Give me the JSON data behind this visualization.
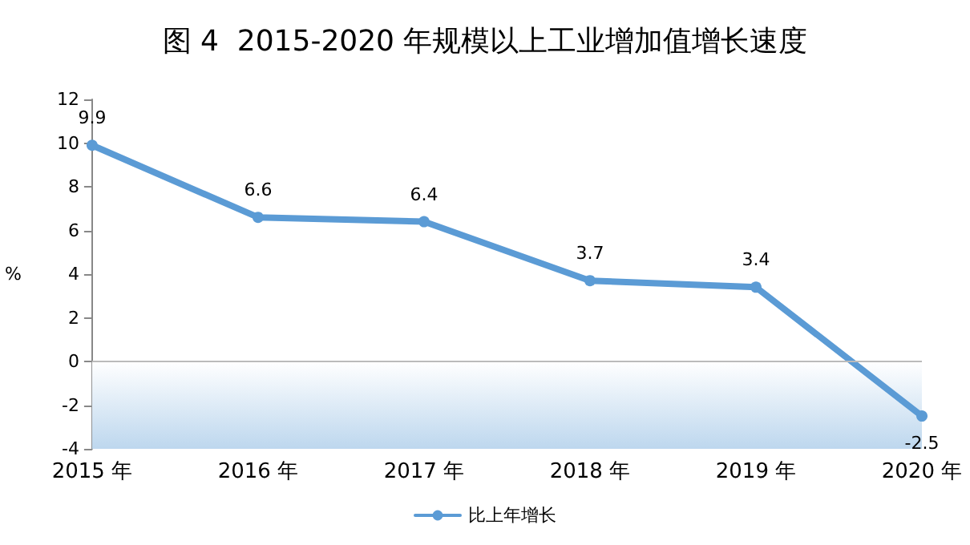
{
  "chart_data": {
    "type": "line",
    "title": "图 4  2015-2020 年规模以上工业增加值增长速度",
    "ylabel": "%",
    "categories": [
      "2015 年",
      "2016 年",
      "2017 年",
      "2018 年",
      "2019 年",
      "2020 年"
    ],
    "series": [
      {
        "name": "比上年增长",
        "color": "#5b9bd5",
        "values": [
          9.9,
          6.6,
          6.4,
          3.7,
          3.4,
          -2.5
        ]
      }
    ],
    "ylim": [
      -4,
      12
    ],
    "yticks": [
      -4,
      -2,
      0,
      2,
      4,
      6,
      8,
      10,
      12
    ],
    "ref_lines": [
      {
        "axis": "y",
        "value": 0,
        "color": "#bbbbbb"
      }
    ],
    "bands": [
      {
        "axis": "y",
        "from": -4,
        "to": 0,
        "color": "#bdd7ee"
      }
    ],
    "data_labels": true,
    "marker": "circle",
    "line_style": "solid",
    "grid": false,
    "legend": "bottom"
  }
}
